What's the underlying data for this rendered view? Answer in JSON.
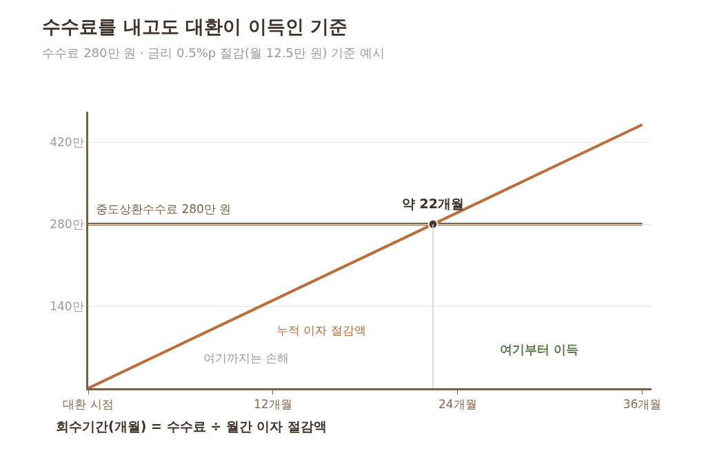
{
  "chart_data": {
    "type": "line",
    "title": "수수료를 내고도 대환이 이득인 기준",
    "subtitle": "수수료 280만 원 · 금리 0.5%p 절감(월 12.5만 원) 기준 예시",
    "series": [
      {
        "name": "누적 이자 절감액",
        "color": "#b86f3c",
        "x": [
          0,
          36
        ],
        "values": [
          0,
          450
        ]
      },
      {
        "type": "scatter",
        "color": "#4a3b2c",
        "x": [
          22.4
        ],
        "values": [
          280
        ],
        "marker": "circle"
      },
      {
        "color": "#d8d0c2",
        "x": [
          22.4,
          22.4
        ],
        "values": [
          0,
          280
        ]
      }
    ],
    "ref_lines": [
      {
        "axis": "y",
        "value": 280,
        "label": "중도상환수수료 280만 원",
        "color": "#7a5f45"
      }
    ],
    "annotations": [
      {
        "text": "약 22개월",
        "x": 22.4,
        "y": 280
      },
      "여기까지는 손해",
      "여기부터 이득",
      "회수기간(개월) = 수수료 ÷ 월간 이자 절감액"
    ],
    "xlim": [
      0,
      36.6
    ],
    "xticks": [
      {
        "value": 0,
        "label": "대환 시점"
      },
      {
        "value": 12,
        "label": "12개월"
      },
      {
        "value": 24,
        "label": "24개월"
      },
      {
        "value": 36,
        "label": "36개월"
      }
    ],
    "ylim": [
      0,
      472
    ],
    "yticks": [
      {
        "value": 140,
        "label": "140만"
      },
      {
        "value": 280,
        "label": "280만"
      },
      {
        "value": 420,
        "label": "420만"
      }
    ],
    "grid": "y",
    "line_style": "solid"
  }
}
